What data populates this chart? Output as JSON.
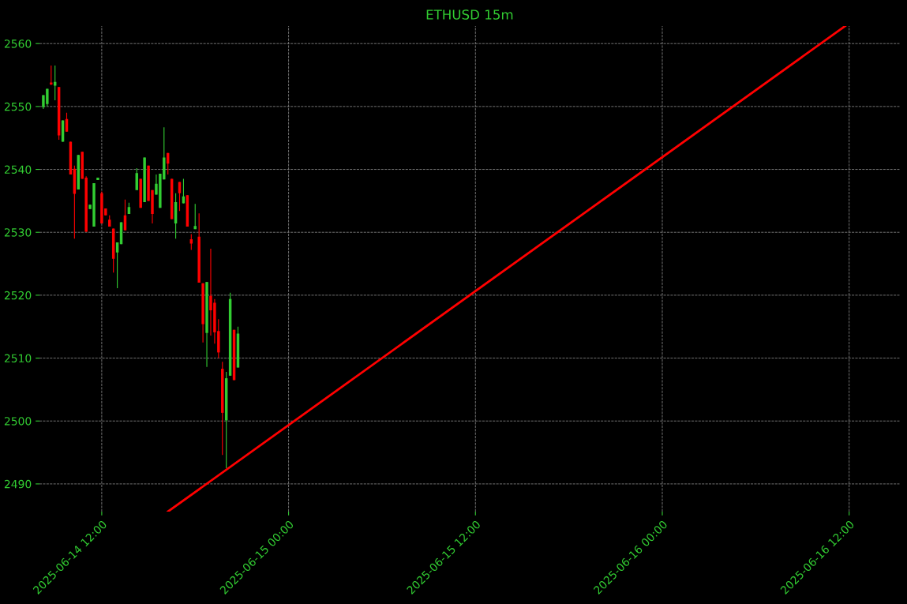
{
  "chart_data": {
    "type": "candlestick",
    "title": "ETHUSD 15m",
    "xlim": [
      "2025-06-14T08:00",
      "2025-06-16T15:15"
    ],
    "xticks": [
      {
        "value": "2025-06-14T12:00",
        "label": "2025-06-14 12:00"
      },
      {
        "value": "2025-06-15T00:00",
        "label": "2025-06-15 00:00"
      },
      {
        "value": "2025-06-15T12:00",
        "label": "2025-06-15 12:00"
      },
      {
        "value": "2025-06-16T00:00",
        "label": "2025-06-16 00:00"
      },
      {
        "value": "2025-06-16T12:00",
        "label": "2025-06-16 12:00"
      }
    ],
    "ylim": [
      2485.6,
      2562.8
    ],
    "yticks": [
      2490,
      2500,
      2510,
      2520,
      2530,
      2540,
      2550,
      2560
    ],
    "grid": true,
    "series": [
      {
        "x": [
          "2025-06-14T08:15",
          "2025-06-14T08:30",
          "2025-06-14T08:45",
          "2025-06-14T09:00",
          "2025-06-14T09:15",
          "2025-06-14T09:30",
          "2025-06-14T09:45",
          "2025-06-14T10:00",
          "2025-06-14T10:15",
          "2025-06-14T10:30",
          "2025-06-14T10:45",
          "2025-06-14T11:00",
          "2025-06-14T11:15",
          "2025-06-14T11:30",
          "2025-06-14T11:45",
          "2025-06-14T12:00",
          "2025-06-14T12:15",
          "2025-06-14T12:30",
          "2025-06-14T12:45",
          "2025-06-14T13:00",
          "2025-06-14T13:15",
          "2025-06-14T13:30",
          "2025-06-14T13:45",
          "2025-06-14T14:15",
          "2025-06-14T14:30",
          "2025-06-14T14:45",
          "2025-06-14T15:00",
          "2025-06-14T15:15",
          "2025-06-14T15:30",
          "2025-06-14T15:45",
          "2025-06-14T16:00",
          "2025-06-14T16:15",
          "2025-06-14T16:30",
          "2025-06-14T16:45",
          "2025-06-14T17:00",
          "2025-06-14T17:15",
          "2025-06-14T17:30",
          "2025-06-14T17:45",
          "2025-06-14T18:00",
          "2025-06-14T18:15",
          "2025-06-14T18:30",
          "2025-06-14T18:45",
          "2025-06-14T19:00",
          "2025-06-14T19:15",
          "2025-06-14T19:30",
          "2025-06-14T19:45",
          "2025-06-14T20:00",
          "2025-06-14T20:15",
          "2025-06-14T20:30",
          "2025-06-14T20:45"
        ],
        "ohlc": [
          [
            2549.9,
            2551.8,
            2549.6,
            2551.8
          ],
          [
            2550.4,
            2552.8,
            2550.0,
            2552.8
          ],
          [
            2553.8,
            2556.5,
            2553.4,
            2553.5
          ],
          [
            2553.3,
            2556.5,
            2551.0,
            2553.9
          ],
          [
            2553.1,
            2553.1,
            2544.7,
            2545.4
          ],
          [
            2544.4,
            2547.8,
            2544.4,
            2547.8
          ],
          [
            2548.0,
            2549.0,
            2546.0,
            2546.0
          ],
          [
            2544.4,
            2544.4,
            2539.2,
            2539.2
          ],
          [
            2540.1,
            2540.6,
            2529.0,
            2536.1
          ],
          [
            2536.8,
            2542.3,
            2536.8,
            2542.3
          ],
          [
            2542.8,
            2542.8,
            2538.5,
            2538.5
          ],
          [
            2538.7,
            2538.9,
            2530.1,
            2530.1
          ],
          [
            2533.7,
            2534.4,
            2533.7,
            2534.4
          ],
          [
            2530.9,
            2537.8,
            2530.9,
            2537.8
          ],
          [
            2538.3,
            2538.7,
            2538.3,
            2538.7
          ],
          [
            2536.2,
            2536.5,
            2531.4,
            2531.4
          ],
          [
            2533.8,
            2533.8,
            2532.7,
            2532.7
          ],
          [
            2532.0,
            2532.7,
            2530.9,
            2530.9
          ],
          [
            2530.6,
            2530.6,
            2523.6,
            2525.8
          ],
          [
            2526.8,
            2528.4,
            2521.1,
            2528.4
          ],
          [
            2528.1,
            2531.6,
            2528.1,
            2531.6
          ],
          [
            2532.7,
            2535.2,
            2530.3,
            2530.3
          ],
          [
            2532.9,
            2534.7,
            2532.9,
            2534.0
          ],
          [
            2536.7,
            2540.2,
            2536.7,
            2539.4
          ],
          [
            2538.5,
            2538.5,
            2533.9,
            2533.9
          ],
          [
            2534.8,
            2541.9,
            2534.8,
            2541.9
          ],
          [
            2540.6,
            2540.6,
            2535.0,
            2535.0
          ],
          [
            2536.7,
            2536.7,
            2531.4,
            2532.9
          ],
          [
            2536.0,
            2539.2,
            2536.0,
            2537.7
          ],
          [
            2533.9,
            2539.3,
            2533.9,
            2539.3
          ],
          [
            2538.4,
            2546.7,
            2538.4,
            2541.9
          ],
          [
            2542.6,
            2542.6,
            2539.2,
            2540.9
          ],
          [
            2538.5,
            2538.5,
            2532.1,
            2532.1
          ],
          [
            2531.4,
            2536.2,
            2529.0,
            2534.8
          ],
          [
            2538.0,
            2538.0,
            2533.4,
            2536.2
          ],
          [
            2534.6,
            2538.5,
            2534.6,
            2535.7
          ],
          [
            2535.9,
            2535.9,
            2530.9,
            2530.9
          ],
          [
            2528.9,
            2529.7,
            2527.2,
            2528.2
          ],
          [
            2530.5,
            2534.5,
            2530.5,
            2531.0
          ],
          [
            2529.3,
            2533.0,
            2522.0,
            2522.0
          ],
          [
            2521.9,
            2521.9,
            2512.5,
            2515.4
          ],
          [
            2514.0,
            2522.1,
            2508.6,
            2522.1
          ],
          [
            2519.9,
            2527.4,
            2513.6,
            2517.6
          ],
          [
            2518.8,
            2519.4,
            2512.3,
            2514.1
          ],
          [
            2514.3,
            2516.2,
            2510.0,
            2510.9
          ],
          [
            2508.3,
            2509.4,
            2494.6,
            2501.3
          ],
          [
            2500.1,
            2507.8,
            2492.5,
            2506.8
          ],
          [
            2507.2,
            2520.4,
            2507.2,
            2519.4
          ],
          [
            2514.5,
            2514.5,
            2506.5,
            2506.5
          ],
          [
            2508.5,
            2515.0,
            2508.5,
            2513.9
          ]
        ],
        "colors": [
          "#32cd32",
          "#32cd32",
          "#ff0000",
          "#32cd32",
          "#ff0000",
          "#32cd32",
          "#ff0000",
          "#ff0000",
          "#ff0000",
          "#32cd32",
          "#ff0000",
          "#ff0000",
          "#32cd32",
          "#32cd32",
          "#32cd32",
          "#ff0000",
          "#ff0000",
          "#ff0000",
          "#ff0000",
          "#32cd32",
          "#32cd32",
          "#ff0000",
          "#32cd32",
          "#32cd32",
          "#ff0000",
          "#32cd32",
          "#ff0000",
          "#ff0000",
          "#32cd32",
          "#32cd32",
          "#32cd32",
          "#ff0000",
          "#ff0000",
          "#32cd32",
          "#ff0000",
          "#32cd32",
          "#ff0000",
          "#ff0000",
          "#32cd32",
          "#ff0000",
          "#ff0000",
          "#32cd32",
          "#ff0000",
          "#ff0000",
          "#ff0000",
          "#ff0000",
          "#32cd32",
          "#32cd32",
          "#ff0000",
          "#32cd32"
        ]
      },
      {
        "type": "line",
        "color": "#ff0000",
        "x": [
          "2025-06-14T16:15",
          "2025-06-16T11:45"
        ],
        "values": [
          2485.6,
          2562.8
        ]
      }
    ]
  }
}
